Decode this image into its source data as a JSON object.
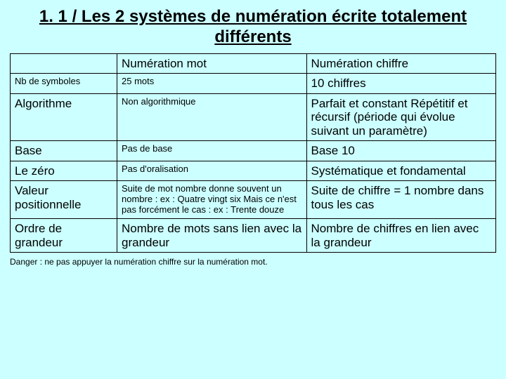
{
  "title": "1. 1 / Les 2 systèmes de numération écrite totalement différents",
  "background_color": "#ccffff",
  "text_color": "#000000",
  "border_color": "#000000",
  "font_family": "Comic Sans MS",
  "table": {
    "column_widths_pct": [
      22,
      39,
      39
    ],
    "header": {
      "label": "",
      "col1": "Numération mot",
      "col2": "Numération chiffre"
    },
    "rows": [
      {
        "label": "Nb de symboles",
        "col1": "25 mots",
        "col2": "10 chiffres",
        "label_small": true,
        "col1_small": true,
        "col2_small": false
      },
      {
        "label": "Algorithme",
        "col1": "Non algorithmique",
        "col2": "Parfait et constant Répétitif et récursif (période qui évolue suivant un paramètre)",
        "label_small": false,
        "col1_small": true,
        "col2_small": false
      },
      {
        "label": "Base",
        "col1": "Pas de base",
        "col2": "Base 10",
        "label_small": false,
        "col1_small": true,
        "col2_small": false
      },
      {
        "label": "Le zéro",
        "col1": "Pas d'oralisation",
        "col2": "Systématique et fondamental",
        "label_small": false,
        "col1_small": true,
        "col2_small": false
      },
      {
        "label": "Valeur positionnelle",
        "col1": "Suite de mot nombre donne souvent un nombre : ex : Quatre vingt six\nMais ce n'est pas forcément le cas : ex : Trente douze",
        "col2": "Suite de chiffre =\n1 nombre\ndans tous les cas",
        "label_small": false,
        "col1_small": true,
        "col2_small": false
      },
      {
        "label": "Ordre de grandeur",
        "col1": "Nombre de mots sans lien avec la grandeur",
        "col2": "Nombre de chiffres en lien avec la grandeur",
        "label_small": false,
        "col1_small": false,
        "col2_small": false
      }
    ]
  },
  "footnote": "Danger : ne pas appuyer la numération chiffre sur la numération mot."
}
